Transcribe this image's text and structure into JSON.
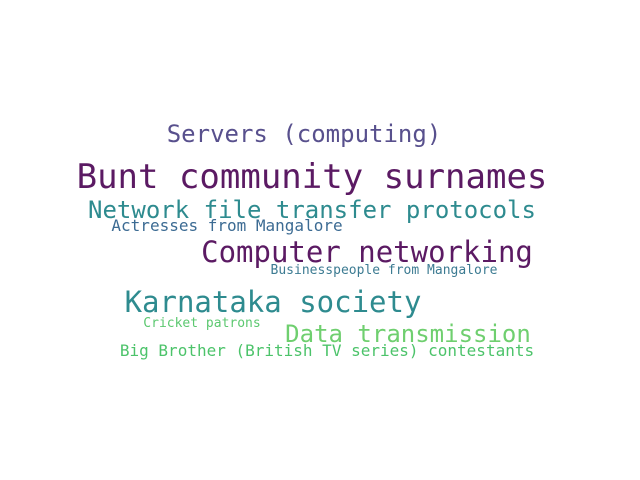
{
  "word_cloud": {
    "background_color": "#ffffff",
    "words": [
      {
        "key": "servers",
        "text": "Servers (computing)",
        "color": "#58508d"
      },
      {
        "key": "bunt",
        "text": "Bunt community surnames",
        "color": "#5b1a63"
      },
      {
        "key": "network",
        "text": "Network file transfer protocols",
        "color": "#2e8b8f"
      },
      {
        "key": "actress",
        "text": "Actresses from Mangalore",
        "color": "#3c6b93"
      },
      {
        "key": "compnet",
        "text": "Computer networking",
        "color": "#5b1a63"
      },
      {
        "key": "business",
        "text": "Businesspeople from Mangalore",
        "color": "#3c7b92"
      },
      {
        "key": "karn",
        "text": "Karnataka society",
        "color": "#2e8b8f"
      },
      {
        "key": "cricket",
        "text": "Cricket patrons",
        "color": "#5cc870"
      },
      {
        "key": "datatx",
        "text": "Data transmission",
        "color": "#6fcf6f"
      },
      {
        "key": "bigbro",
        "text": "Big Brother (British TV series) contestants",
        "color": "#4cc36a"
      }
    ]
  }
}
